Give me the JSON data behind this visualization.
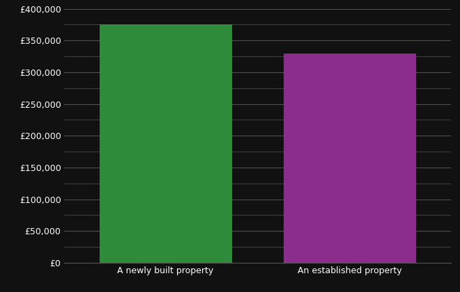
{
  "categories": [
    "A newly built property",
    "An established property"
  ],
  "values": [
    375000,
    330000
  ],
  "bar_colors": [
    "#2e8b3a",
    "#8b2d8b"
  ],
  "background_color": "#111111",
  "text_color": "#ffffff",
  "grid_color": "#555555",
  "ylim": [
    0,
    400000
  ],
  "ytick_major_step": 50000,
  "ytick_minor_step": 25000,
  "bar_width": 0.72,
  "figsize": [
    6.6,
    4.2
  ],
  "dpi": 100,
  "font_size": 9
}
